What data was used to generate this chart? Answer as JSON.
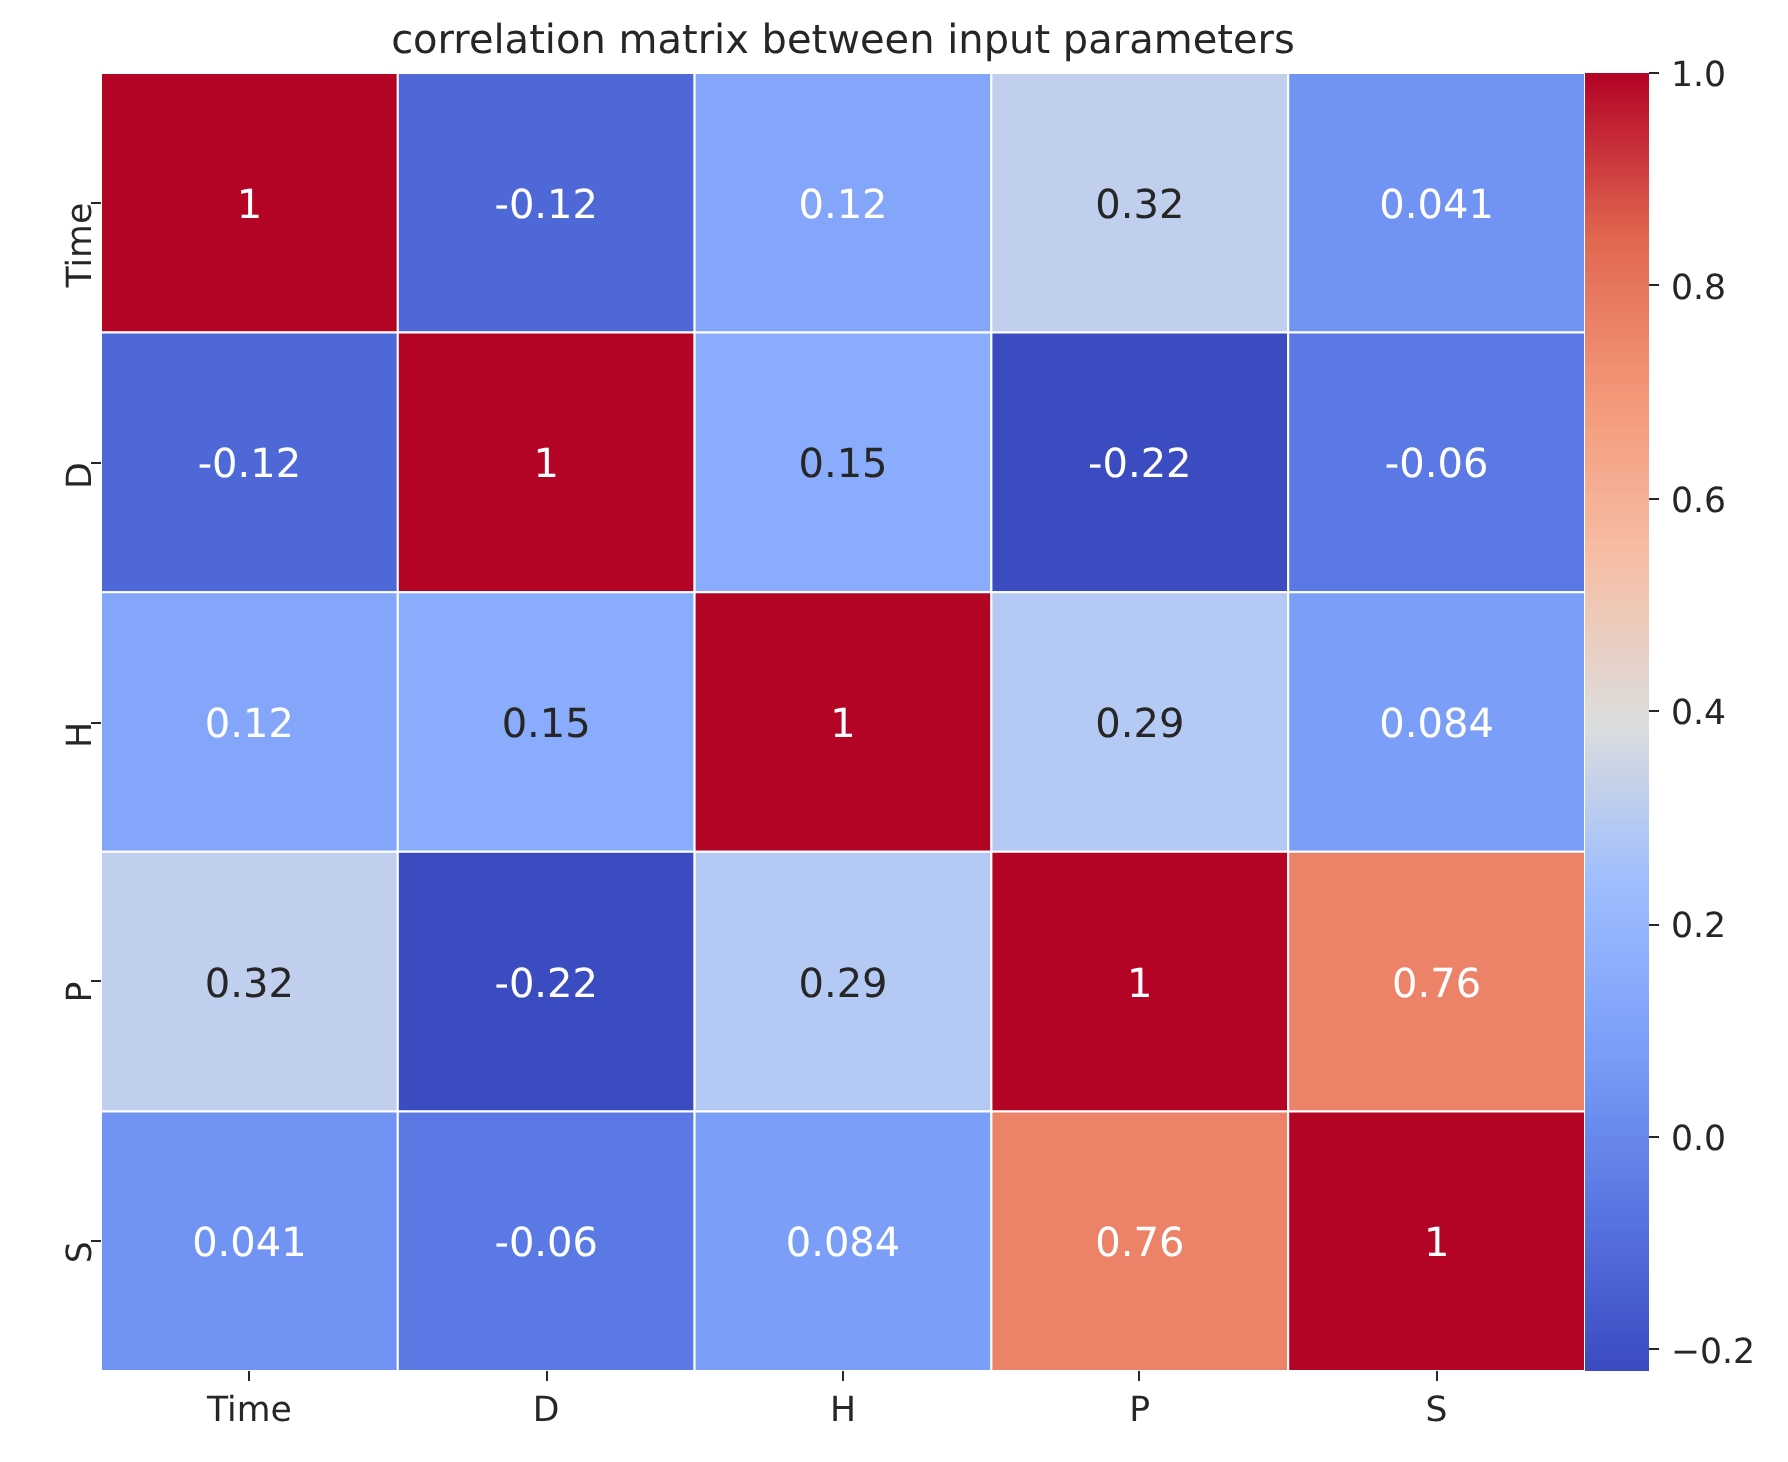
{
  "chart_data": {
    "type": "heatmap",
    "title": "correlation matrix between input parameters",
    "categories": [
      "Time",
      "D",
      "H",
      "P",
      "S"
    ],
    "y_categories": [
      "Time",
      "D",
      "H",
      "P",
      "S"
    ],
    "cells": [
      [
        1,
        -0.12,
        0.12,
        0.32,
        0.041
      ],
      [
        -0.12,
        1,
        0.15,
        -0.22,
        -0.06
      ],
      [
        0.12,
        0.15,
        1,
        0.29,
        0.084
      ],
      [
        0.32,
        -0.22,
        0.29,
        1,
        0.76
      ],
      [
        0.041,
        -0.06,
        0.084,
        0.76,
        1
      ]
    ],
    "clim": [
      -0.22,
      1
    ],
    "cticks": [
      {
        "value": -0.2,
        "label": "−0.2"
      },
      {
        "value": 0,
        "label": "0.0"
      },
      {
        "value": 0.2,
        "label": "0.2"
      },
      {
        "value": 0.4,
        "label": "0.4"
      },
      {
        "value": 0.6,
        "label": "0.6"
      },
      {
        "value": 0.8,
        "label": "0.8"
      },
      {
        "value": 1,
        "label": "1.0"
      }
    ],
    "data_labels": true
  }
}
